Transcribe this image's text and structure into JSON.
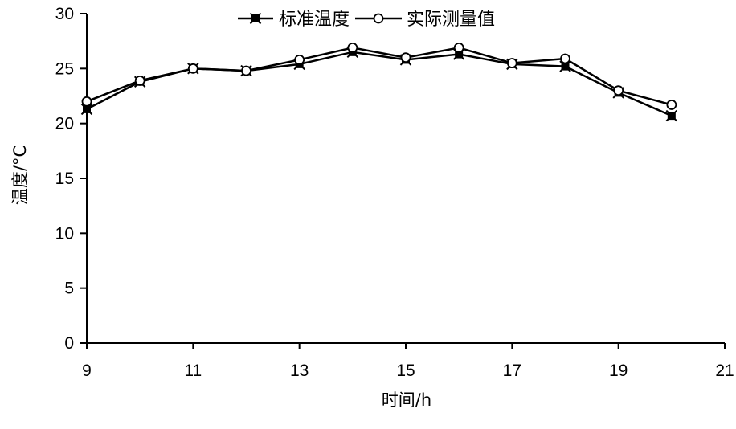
{
  "chart_data": {
    "type": "line",
    "title": "",
    "xlabel": "时间/h",
    "ylabel": "温度/°C",
    "xlim": [
      9,
      21
    ],
    "ylim": [
      0,
      30
    ],
    "xticks": [
      9,
      11,
      13,
      15,
      17,
      19,
      21
    ],
    "yticks": [
      0,
      5,
      10,
      15,
      20,
      25,
      30
    ],
    "grid": false,
    "legend_position": "top-center",
    "x": [
      9,
      10,
      11,
      12,
      13,
      14,
      15,
      16,
      17,
      18,
      19,
      20
    ],
    "series": [
      {
        "name": "标准温度",
        "marker": "x-square",
        "color": "#000000",
        "values": [
          21.3,
          23.8,
          25.0,
          24.8,
          25.4,
          26.5,
          25.8,
          26.3,
          25.4,
          25.2,
          22.8,
          20.7
        ]
      },
      {
        "name": "实际测量值",
        "marker": "open-circle",
        "color": "#000000",
        "values": [
          22.0,
          23.9,
          25.0,
          24.8,
          25.8,
          26.9,
          26.0,
          26.9,
          25.5,
          25.9,
          23.0,
          21.7
        ]
      }
    ]
  }
}
